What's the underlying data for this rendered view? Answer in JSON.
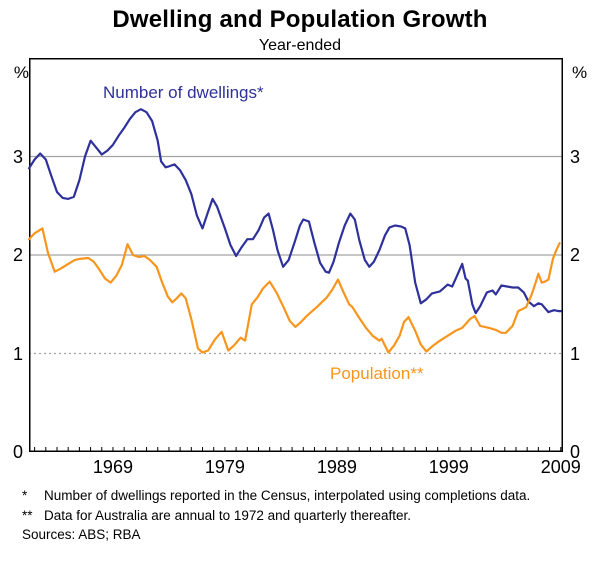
{
  "title": "Dwelling and Population Growth",
  "subtitle": "Year-ended",
  "y_axis": {
    "unit": "%",
    "ticks": [
      0,
      1,
      2,
      3
    ],
    "min": 0,
    "max": 4
  },
  "x_axis": {
    "labels": [
      1969,
      1979,
      1989,
      1999,
      2009
    ],
    "tick_start": 1962,
    "tick_end": 2009,
    "tick_step": 1
  },
  "series_labels": {
    "dwellings": "Number of dwellings*",
    "population": "Population**"
  },
  "footnotes": [
    {
      "marker": "*",
      "text": "Number of dwellings reported in the Census, interpolated using completions data."
    },
    {
      "marker": "**",
      "text": "Data for Australia are annual to 1972 and quarterly thereafter."
    }
  ],
  "sources": "Sources: ABS; RBA",
  "colors": {
    "dwellings": "#2E319C",
    "population": "#F8951D",
    "grid": "#A3A3A3",
    "axis": "#000000",
    "text": "#000000"
  },
  "chart_data": {
    "type": "line",
    "title": "Dwelling and Population Growth",
    "subtitle": "Year-ended",
    "ylabel": "%",
    "ylim": [
      0,
      4
    ],
    "xlim": [
      1961.5,
      2009.2
    ],
    "gridlines": [
      {
        "value": 1,
        "dashed": true
      },
      {
        "value": 2,
        "dashed": false
      },
      {
        "value": 3,
        "dashed": false
      }
    ],
    "legend_position": "inline-labels",
    "series": [
      {
        "name": "Number of dwellings*",
        "color": "#2E319C",
        "points": [
          [
            1961.5,
            2.88
          ],
          [
            1962.0,
            2.97
          ],
          [
            1962.5,
            3.03
          ],
          [
            1963.0,
            2.97
          ],
          [
            1963.5,
            2.8
          ],
          [
            1964.0,
            2.64
          ],
          [
            1964.5,
            2.58
          ],
          [
            1965.0,
            2.57
          ],
          [
            1965.5,
            2.59
          ],
          [
            1966.0,
            2.76
          ],
          [
            1966.5,
            3.0
          ],
          [
            1967.0,
            3.16
          ],
          [
            1967.5,
            3.09
          ],
          [
            1968.0,
            3.02
          ],
          [
            1968.5,
            3.06
          ],
          [
            1969.0,
            3.12
          ],
          [
            1969.5,
            3.21
          ],
          [
            1970.0,
            3.29
          ],
          [
            1970.5,
            3.38
          ],
          [
            1971.0,
            3.45
          ],
          [
            1971.5,
            3.48
          ],
          [
            1972.0,
            3.45
          ],
          [
            1972.5,
            3.36
          ],
          [
            1973.0,
            3.16
          ],
          [
            1973.3,
            2.95
          ],
          [
            1973.7,
            2.89
          ],
          [
            1974.0,
            2.9
          ],
          [
            1974.5,
            2.92
          ],
          [
            1975.0,
            2.86
          ],
          [
            1975.5,
            2.76
          ],
          [
            1976.0,
            2.62
          ],
          [
            1976.5,
            2.4
          ],
          [
            1977.0,
            2.27
          ],
          [
            1977.5,
            2.44
          ],
          [
            1977.9,
            2.57
          ],
          [
            1978.3,
            2.49
          ],
          [
            1979.0,
            2.27
          ],
          [
            1979.5,
            2.1
          ],
          [
            1980.0,
            1.99
          ],
          [
            1980.5,
            2.08
          ],
          [
            1981.0,
            2.16
          ],
          [
            1981.5,
            2.16
          ],
          [
            1982.0,
            2.25
          ],
          [
            1982.5,
            2.38
          ],
          [
            1982.9,
            2.42
          ],
          [
            1983.3,
            2.25
          ],
          [
            1983.7,
            2.05
          ],
          [
            1984.2,
            1.88
          ],
          [
            1984.7,
            1.95
          ],
          [
            1985.2,
            2.12
          ],
          [
            1985.7,
            2.3
          ],
          [
            1986.0,
            2.36
          ],
          [
            1986.5,
            2.34
          ],
          [
            1987.0,
            2.12
          ],
          [
            1987.5,
            1.92
          ],
          [
            1988.0,
            1.83
          ],
          [
            1988.3,
            1.82
          ],
          [
            1988.7,
            1.93
          ],
          [
            1989.2,
            2.13
          ],
          [
            1989.7,
            2.3
          ],
          [
            1990.2,
            2.42
          ],
          [
            1990.6,
            2.36
          ],
          [
            1991.0,
            2.15
          ],
          [
            1991.5,
            1.95
          ],
          [
            1991.9,
            1.88
          ],
          [
            1992.3,
            1.93
          ],
          [
            1992.8,
            2.05
          ],
          [
            1993.3,
            2.2
          ],
          [
            1993.7,
            2.28
          ],
          [
            1994.2,
            2.3
          ],
          [
            1994.7,
            2.29
          ],
          [
            1995.1,
            2.27
          ],
          [
            1995.5,
            2.1
          ],
          [
            1996.0,
            1.72
          ],
          [
            1996.5,
            1.51
          ],
          [
            1997.0,
            1.55
          ],
          [
            1997.5,
            1.61
          ],
          [
            1998.2,
            1.63
          ],
          [
            1998.9,
            1.7
          ],
          [
            1999.3,
            1.68
          ],
          [
            1999.7,
            1.78
          ],
          [
            2000.2,
            1.91
          ],
          [
            2000.5,
            1.76
          ],
          [
            2000.7,
            1.74
          ],
          [
            2001.1,
            1.5
          ],
          [
            2001.4,
            1.41
          ],
          [
            2001.8,
            1.48
          ],
          [
            2002.4,
            1.62
          ],
          [
            2002.9,
            1.64
          ],
          [
            2003.2,
            1.6
          ],
          [
            2003.7,
            1.69
          ],
          [
            2004.2,
            1.68
          ],
          [
            2004.7,
            1.67
          ],
          [
            2005.2,
            1.67
          ],
          [
            2005.7,
            1.62
          ],
          [
            2006.1,
            1.53
          ],
          [
            2006.6,
            1.48
          ],
          [
            2007.0,
            1.51
          ],
          [
            2007.3,
            1.5
          ],
          [
            2007.9,
            1.42
          ],
          [
            2008.4,
            1.44
          ],
          [
            2008.8,
            1.43
          ],
          [
            2009.0,
            1.43
          ]
        ]
      },
      {
        "name": "Population**",
        "color": "#F8951D",
        "points": [
          [
            1961.5,
            2.16
          ],
          [
            1962.0,
            2.22
          ],
          [
            1962.7,
            2.27
          ],
          [
            1963.2,
            2.02
          ],
          [
            1963.8,
            1.83
          ],
          [
            1964.3,
            1.86
          ],
          [
            1965.0,
            1.91
          ],
          [
            1965.6,
            1.95
          ],
          [
            1966.0,
            1.96
          ],
          [
            1966.8,
            1.97
          ],
          [
            1967.3,
            1.93
          ],
          [
            1967.8,
            1.85
          ],
          [
            1968.3,
            1.76
          ],
          [
            1968.8,
            1.72
          ],
          [
            1969.3,
            1.79
          ],
          [
            1969.8,
            1.9
          ],
          [
            1970.3,
            2.11
          ],
          [
            1970.8,
            2.0
          ],
          [
            1971.3,
            1.98
          ],
          [
            1971.8,
            1.99
          ],
          [
            1972.3,
            1.95
          ],
          [
            1972.9,
            1.88
          ],
          [
            1973.4,
            1.72
          ],
          [
            1973.9,
            1.58
          ],
          [
            1974.3,
            1.52
          ],
          [
            1974.7,
            1.56
          ],
          [
            1975.1,
            1.61
          ],
          [
            1975.5,
            1.56
          ],
          [
            1976.0,
            1.35
          ],
          [
            1976.6,
            1.05
          ],
          [
            1977.0,
            1.01
          ],
          [
            1977.5,
            1.03
          ],
          [
            1978.1,
            1.14
          ],
          [
            1978.7,
            1.22
          ],
          [
            1979.3,
            1.03
          ],
          [
            1979.8,
            1.08
          ],
          [
            1980.4,
            1.16
          ],
          [
            1980.8,
            1.13
          ],
          [
            1981.4,
            1.5
          ],
          [
            1981.9,
            1.57
          ],
          [
            1982.4,
            1.66
          ],
          [
            1983.0,
            1.73
          ],
          [
            1983.6,
            1.62
          ],
          [
            1984.2,
            1.48
          ],
          [
            1984.8,
            1.33
          ],
          [
            1985.3,
            1.27
          ],
          [
            1985.8,
            1.32
          ],
          [
            1986.3,
            1.38
          ],
          [
            1987.2,
            1.47
          ],
          [
            1988.1,
            1.57
          ],
          [
            1988.6,
            1.65
          ],
          [
            1989.1,
            1.75
          ],
          [
            1989.6,
            1.62
          ],
          [
            1990.1,
            1.5
          ],
          [
            1990.4,
            1.47
          ],
          [
            1991.0,
            1.36
          ],
          [
            1991.6,
            1.26
          ],
          [
            1992.2,
            1.18
          ],
          [
            1992.8,
            1.13
          ],
          [
            1993.0,
            1.15
          ],
          [
            1993.6,
            1.01
          ],
          [
            1994.1,
            1.08
          ],
          [
            1994.6,
            1.18
          ],
          [
            1995.0,
            1.32
          ],
          [
            1995.4,
            1.37
          ],
          [
            1996.0,
            1.23
          ],
          [
            1996.5,
            1.09
          ],
          [
            1997.0,
            1.02
          ],
          [
            1997.6,
            1.08
          ],
          [
            1998.2,
            1.13
          ],
          [
            1998.9,
            1.18
          ],
          [
            1999.6,
            1.23
          ],
          [
            2000.2,
            1.26
          ],
          [
            2000.9,
            1.35
          ],
          [
            2001.3,
            1.38
          ],
          [
            2001.8,
            1.28
          ],
          [
            2002.6,
            1.26
          ],
          [
            2003.2,
            1.24
          ],
          [
            2003.7,
            1.21
          ],
          [
            2004.1,
            1.21
          ],
          [
            2004.7,
            1.28
          ],
          [
            2005.2,
            1.43
          ],
          [
            2005.9,
            1.47
          ],
          [
            2006.4,
            1.6
          ],
          [
            2006.7,
            1.7
          ],
          [
            2007.0,
            1.81
          ],
          [
            2007.3,
            1.72
          ],
          [
            2007.6,
            1.73
          ],
          [
            2007.9,
            1.75
          ],
          [
            2008.3,
            1.96
          ],
          [
            2008.6,
            2.05
          ],
          [
            2008.9,
            2.12
          ]
        ]
      }
    ]
  }
}
